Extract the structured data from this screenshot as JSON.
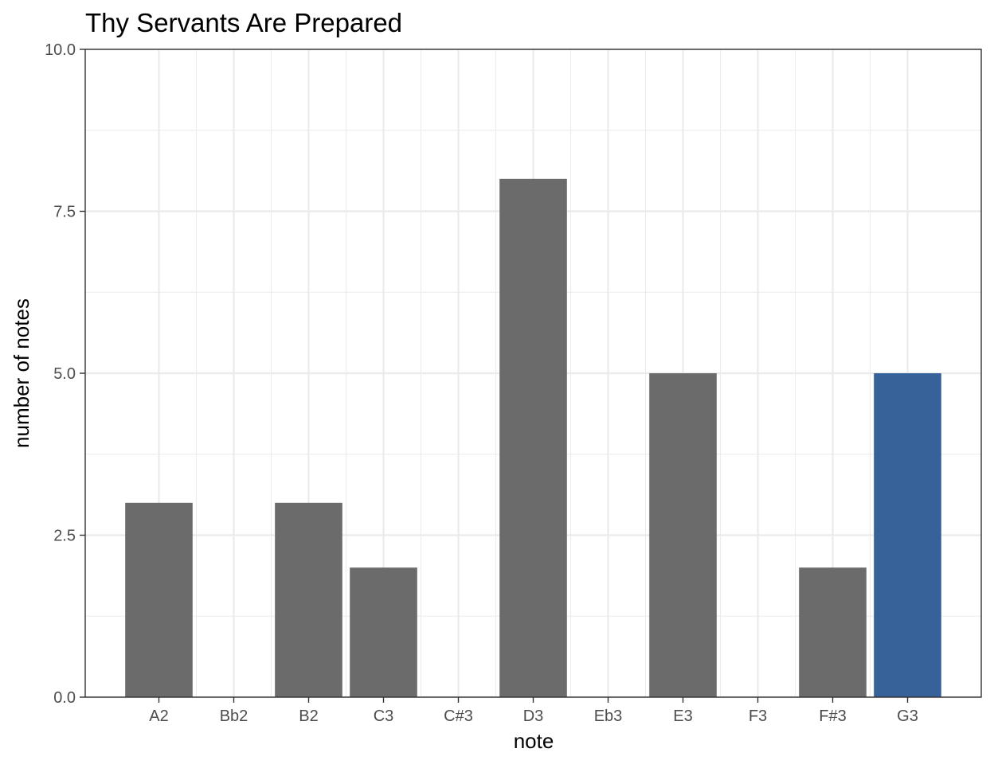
{
  "chart_data": {
    "type": "bar",
    "title": "Thy Servants Are Prepared",
    "xlabel": "note",
    "ylabel": "number of notes",
    "categories": [
      "A2",
      "Bb2",
      "B2",
      "C3",
      "C#3",
      "D3",
      "Eb3",
      "E3",
      "F3",
      "F#3",
      "G3"
    ],
    "values": [
      3,
      0,
      3,
      2,
      0,
      8,
      0,
      5,
      0,
      2,
      5
    ],
    "highlight": [
      "G3"
    ],
    "ylim": [
      0,
      10
    ],
    "yticks": [
      "0.0",
      "2.5",
      "5.0",
      "7.5",
      "10.0"
    ],
    "grid": true,
    "legend": "none",
    "colors": {
      "bar": "#6b6b6b",
      "highlight": "#376299",
      "grid": "#ebebeb",
      "panel_border": "#333333"
    }
  }
}
